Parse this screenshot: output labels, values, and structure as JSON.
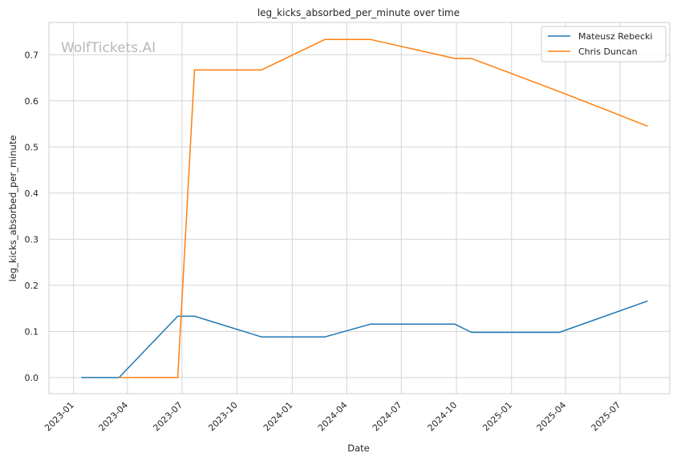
{
  "chart_data": {
    "type": "line",
    "title": "leg_kicks_absorbed_per_minute over time",
    "xlabel": "Date",
    "ylabel": "leg_kicks_absorbed_per_minute",
    "watermark": "WolfTickets.AI",
    "x_ticks": [
      "2023-01",
      "2023-04",
      "2023-07",
      "2023-10",
      "2024-01",
      "2024-04",
      "2024-07",
      "2024-10",
      "2025-01",
      "2025-04",
      "2025-07"
    ],
    "y_ticks": [
      "0.0",
      "0.1",
      "0.2",
      "0.3",
      "0.4",
      "0.5",
      "0.6",
      "0.7"
    ],
    "ylim": [
      -0.035,
      0.77
    ],
    "xlim": [
      "2022-11-21",
      "2025-09-22"
    ],
    "grid": true,
    "legend_position": "top-right",
    "series": [
      {
        "name": "Mateusz Rebecki",
        "color": "#1f77b4",
        "points": [
          {
            "x": "2023-01-14",
            "y": 0.0
          },
          {
            "x": "2023-03-18",
            "y": 0.0
          },
          {
            "x": "2023-06-24",
            "y": 0.133
          },
          {
            "x": "2023-07-22",
            "y": 0.133
          },
          {
            "x": "2023-11-11",
            "y": 0.088
          },
          {
            "x": "2024-02-24",
            "y": 0.088
          },
          {
            "x": "2024-05-11",
            "y": 0.116
          },
          {
            "x": "2024-09-28",
            "y": 0.116
          },
          {
            "x": "2024-10-26",
            "y": 0.098
          },
          {
            "x": "2025-03-22",
            "y": 0.098
          },
          {
            "x": "2025-08-16",
            "y": 0.166
          }
        ]
      },
      {
        "name": "Chris Duncan",
        "color": "#ff7f0e",
        "points": [
          {
            "x": "2023-03-18",
            "y": 0.0
          },
          {
            "x": "2023-06-24",
            "y": 0.0
          },
          {
            "x": "2023-07-22",
            "y": 0.667
          },
          {
            "x": "2023-11-11",
            "y": 0.667
          },
          {
            "x": "2024-02-24",
            "y": 0.733
          },
          {
            "x": "2024-05-11",
            "y": 0.733
          },
          {
            "x": "2024-09-28",
            "y": 0.692
          },
          {
            "x": "2024-10-26",
            "y": 0.692
          },
          {
            "x": "2025-03-22",
            "y": 0.62
          },
          {
            "x": "2025-08-16",
            "y": 0.545
          }
        ]
      }
    ]
  }
}
